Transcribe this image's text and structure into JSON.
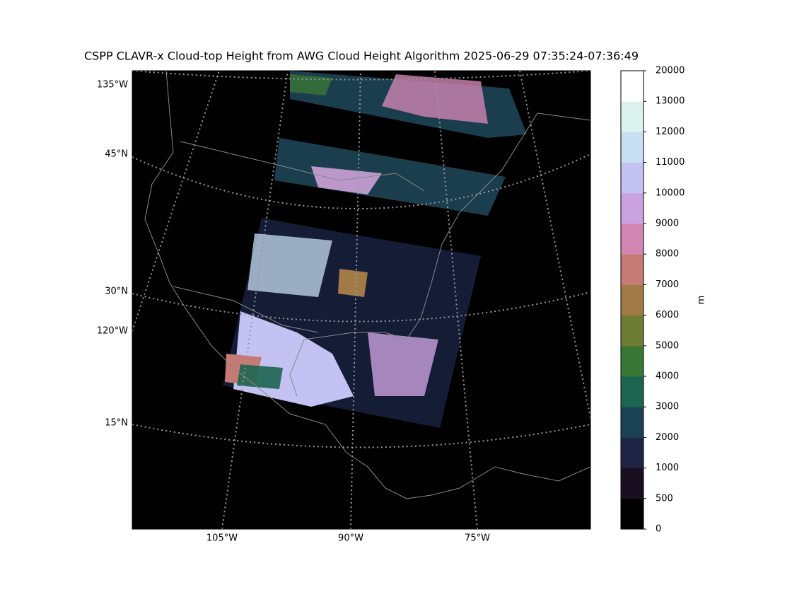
{
  "title": "CSPP CLAVR-x Cloud-top Height from AWG Cloud Height Algorithm 2025-06-29 07:35:24-07:36:49",
  "map": {
    "lat_labels": [
      "135°W",
      "45°N",
      "30°N",
      "120°W",
      "15°N"
    ],
    "lon_labels": [
      "105°W",
      "90°W",
      "75°W"
    ]
  },
  "colorbar": {
    "label": "m",
    "ticks": [
      0,
      500,
      1000,
      2000,
      3000,
      4000,
      5000,
      6000,
      7000,
      8000,
      9000,
      10000,
      11000,
      12000,
      13000,
      20000
    ],
    "colors": [
      "#000000",
      "#1a0f20",
      "#1d2444",
      "#1b4252",
      "#1d6550",
      "#3a7634",
      "#6e7d34",
      "#a27a48",
      "#c57a73",
      "#d186b4",
      "#cba2e0",
      "#c3c2f2",
      "#c8def1",
      "#dcf2ee",
      "#ffffff"
    ]
  }
}
